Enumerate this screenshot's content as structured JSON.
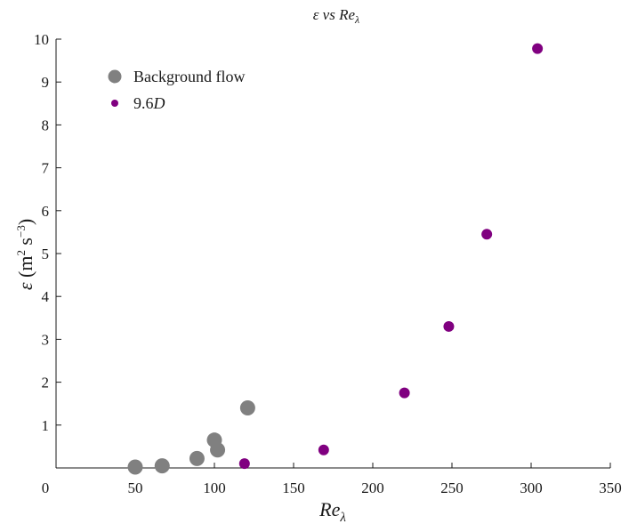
{
  "chart_data": {
    "type": "scatter",
    "title_parts": {
      "pre": "ε vs ",
      "main": "Re",
      "sub": "λ"
    },
    "xlabel_parts": {
      "main": "Re",
      "sub": "λ"
    },
    "ylabel_parts": {
      "sym": "ε",
      "open": " (m",
      "sup1": "2",
      "mid": " s",
      "sup2": "−3",
      "close": ")"
    },
    "xlim": [
      0,
      350
    ],
    "ylim": [
      0,
      10
    ],
    "xticks": [
      0,
      50,
      100,
      150,
      200,
      250,
      300,
      350
    ],
    "yticks": [
      1,
      2,
      3,
      4,
      5,
      6,
      7,
      8,
      9,
      10
    ],
    "grid": false,
    "legend_position": "top-left",
    "series": [
      {
        "name": "Background flow",
        "color": "#808080",
        "marker": "large-circle",
        "x": [
          50,
          67,
          89,
          100,
          102,
          121
        ],
        "y": [
          0.02,
          0.05,
          0.22,
          0.65,
          0.42,
          1.4
        ]
      },
      {
        "name_parts": {
          "main": "9.6",
          "italic": "D"
        },
        "color": "#800080",
        "marker": "small-circle",
        "x": [
          119,
          169,
          220,
          248,
          272,
          304
        ],
        "y": [
          0.1,
          0.42,
          1.75,
          3.3,
          5.45,
          9.78
        ]
      }
    ]
  }
}
